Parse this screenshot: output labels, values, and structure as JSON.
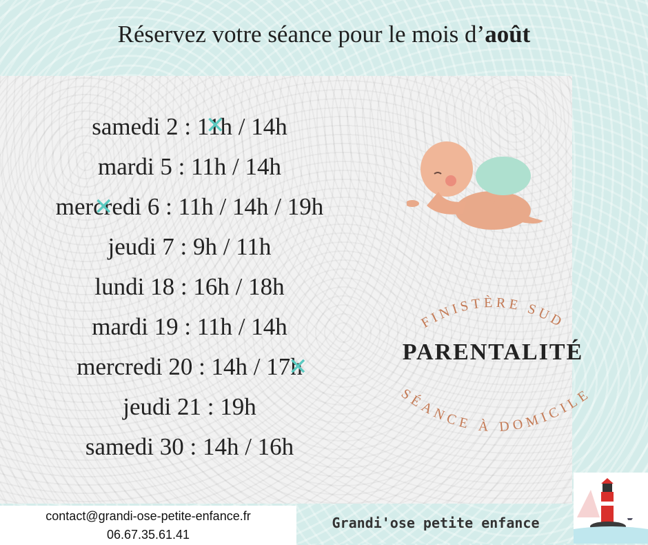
{
  "header": {
    "title_prefix": "Réservez votre séance pour le mois d’",
    "title_bold": "août"
  },
  "schedule": [
    "samedi 2 : 11h / 14h",
    "mardi 5 : 11h / 14h",
    "mercredi 6 : 11h / 14h / 19h",
    "jeudi 7 : 9h / 11h",
    "lundi 18 : 16h / 18h",
    "mardi 19 : 11h / 14h",
    "mercredi 20 : 14h / 17h",
    "jeudi 21 : 19h",
    "samedi 30 : 14h / 16h"
  ],
  "badge": {
    "top_arc": "FINISTÈRE SUD",
    "title": "PARENTALITÉ",
    "bottom_arc": "SÉANCE À DOMICILE"
  },
  "footer": {
    "email": "contact@grandi-ose-petite-enfance.fr",
    "phone": "06.67.35.61.41",
    "brand": "Grandi'ose petite enfance"
  },
  "colors": {
    "cross_mark": "#5ac9c0",
    "arc_text": "#c47a55",
    "background": "#d4ecea"
  },
  "icons": [
    "crawling-baby-illustration",
    "lighthouse-logo"
  ]
}
